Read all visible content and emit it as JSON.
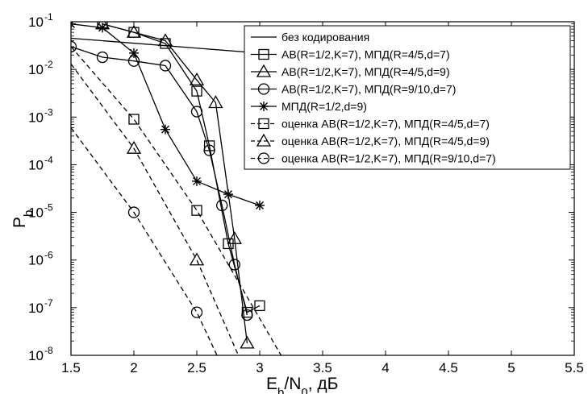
{
  "chart_data": {
    "type": "line",
    "title": "",
    "xlabel": "E_b/N_0, дБ",
    "ylabel": "P_b",
    "xlim": [
      1.5,
      5.5
    ],
    "ylim_log10": [
      -8,
      -1
    ],
    "yscale": "log",
    "grid": false,
    "legend_position": "top-right",
    "x_ticks": [
      "1.5",
      "2",
      "2.5",
      "3",
      "3.5",
      "4",
      "4.5",
      "5",
      "5.5"
    ],
    "y_ticks": [
      {
        "base": "10",
        "exp": "-1"
      },
      {
        "base": "10",
        "exp": "-2"
      },
      {
        "base": "10",
        "exp": "-3"
      },
      {
        "base": "10",
        "exp": "-4"
      },
      {
        "base": "10",
        "exp": "-5"
      },
      {
        "base": "10",
        "exp": "-6"
      },
      {
        "base": "10",
        "exp": "-7"
      },
      {
        "base": "10",
        "exp": "-8"
      }
    ],
    "series": [
      {
        "name": "без кодирования",
        "style": "solid",
        "marker": "none",
        "x": [
          1.5,
          3.0
        ],
        "y": [
          0.045,
          0.022
        ]
      },
      {
        "name": "АВ(R=1/2,K=7), МПД(R=4/5,d=7)",
        "style": "solid",
        "marker": "square",
        "x": [
          1.75,
          2.0,
          2.25,
          2.5,
          2.6,
          2.75,
          2.9,
          3.0
        ],
        "y": [
          0.09,
          0.06,
          0.035,
          0.0035,
          0.00025,
          2.2e-06,
          8e-08,
          1.1e-07
        ]
      },
      {
        "name": "АВ(R=1/2,K=7), МПД(R=4/5,d=9)",
        "style": "solid",
        "marker": "triangle",
        "x": [
          1.75,
          2.0,
          2.25,
          2.5,
          2.65,
          2.8,
          2.9
        ],
        "y": [
          0.09,
          0.06,
          0.04,
          0.006,
          0.002,
          2.8e-06,
          1.8e-08
        ]
      },
      {
        "name": "АВ(R=1/2,K=7), МПД(R=9/10,d=7)",
        "style": "solid",
        "marker": "circle",
        "x": [
          1.5,
          1.75,
          2.0,
          2.25,
          2.5,
          2.6,
          2.7,
          2.8,
          2.9
        ],
        "y": [
          0.03,
          0.018,
          0.015,
          0.012,
          0.0013,
          0.0002,
          1.4e-05,
          8e-07,
          7e-08
        ]
      },
      {
        "name": "МПД(R=1/2,d=9)",
        "style": "solid",
        "marker": "star",
        "x": [
          1.5,
          1.75,
          2.0,
          2.25,
          2.5,
          2.75,
          3.0
        ],
        "y": [
          0.09,
          0.075,
          0.022,
          0.00055,
          4.5e-05,
          2.4e-05,
          1.4e-05
        ]
      },
      {
        "name": "оценка АВ(R=1/2,K=7), МПД(R=4/5,d=7)",
        "style": "dashed",
        "marker": "square",
        "x": [
          1.5,
          2.0,
          2.5,
          3.17
        ],
        "y": [
          0.03,
          0.0009,
          1.1e-05,
          1e-08
        ]
      },
      {
        "name": "оценка АВ(R=1/2,K=7), МПД(R=4/5,d=9)",
        "style": "dashed",
        "marker": "triangle",
        "x": [
          1.5,
          2.0,
          2.5,
          2.83
        ],
        "y": [
          0.013,
          0.00022,
          1e-06,
          1e-08
        ]
      },
      {
        "name": "оценка АВ(R=1/2,K=7), МПД(R=9/10,d=7)",
        "style": "dashed",
        "marker": "circle",
        "x": [
          1.5,
          2.0,
          2.5,
          2.66
        ],
        "y": [
          0.0006,
          1e-05,
          8e-08,
          1e-08
        ]
      }
    ]
  }
}
